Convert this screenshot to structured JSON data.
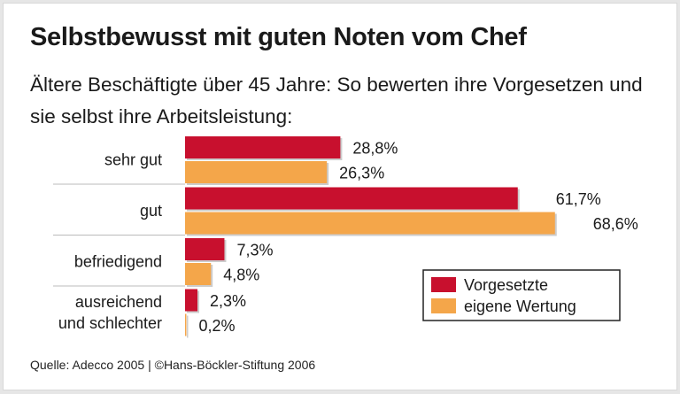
{
  "chart_data": {
    "type": "bar",
    "orientation": "horizontal",
    "title": "Selbstbewusst mit guten Noten vom Chef",
    "subtitle": "Ältere Beschäftigte über 45 Jahre: So bewerten ihre Vorgesetzen und sie selbst ihre Arbeitsleistung:",
    "categories": [
      "sehr gut",
      "gut",
      "befriedigend",
      "ausreichend und schlechter"
    ],
    "category_lines": [
      [
        "sehr gut"
      ],
      [
        "gut"
      ],
      [
        "befriedigend"
      ],
      [
        "ausreichend",
        "und schlechter"
      ]
    ],
    "series": [
      {
        "name": "Vorgesetzte",
        "values": [
          28.8,
          61.7,
          7.3,
          2.3
        ],
        "labels": [
          "28,8%",
          "61,7%",
          "7,3%",
          "2,3%"
        ],
        "color": "#c8102e"
      },
      {
        "name": "eigene Wertung",
        "values": [
          26.3,
          68.6,
          4.8,
          0.2
        ],
        "labels": [
          "26,3%",
          "68,6%",
          "4,8%",
          "0,2%"
        ],
        "color": "#f4a64a"
      }
    ],
    "unit": "%",
    "legend_position": "bottom-right",
    "grid": false,
    "source": "Quelle: Adecco 2005 | ©Hans-Böckler-Stiftung 2006"
  }
}
